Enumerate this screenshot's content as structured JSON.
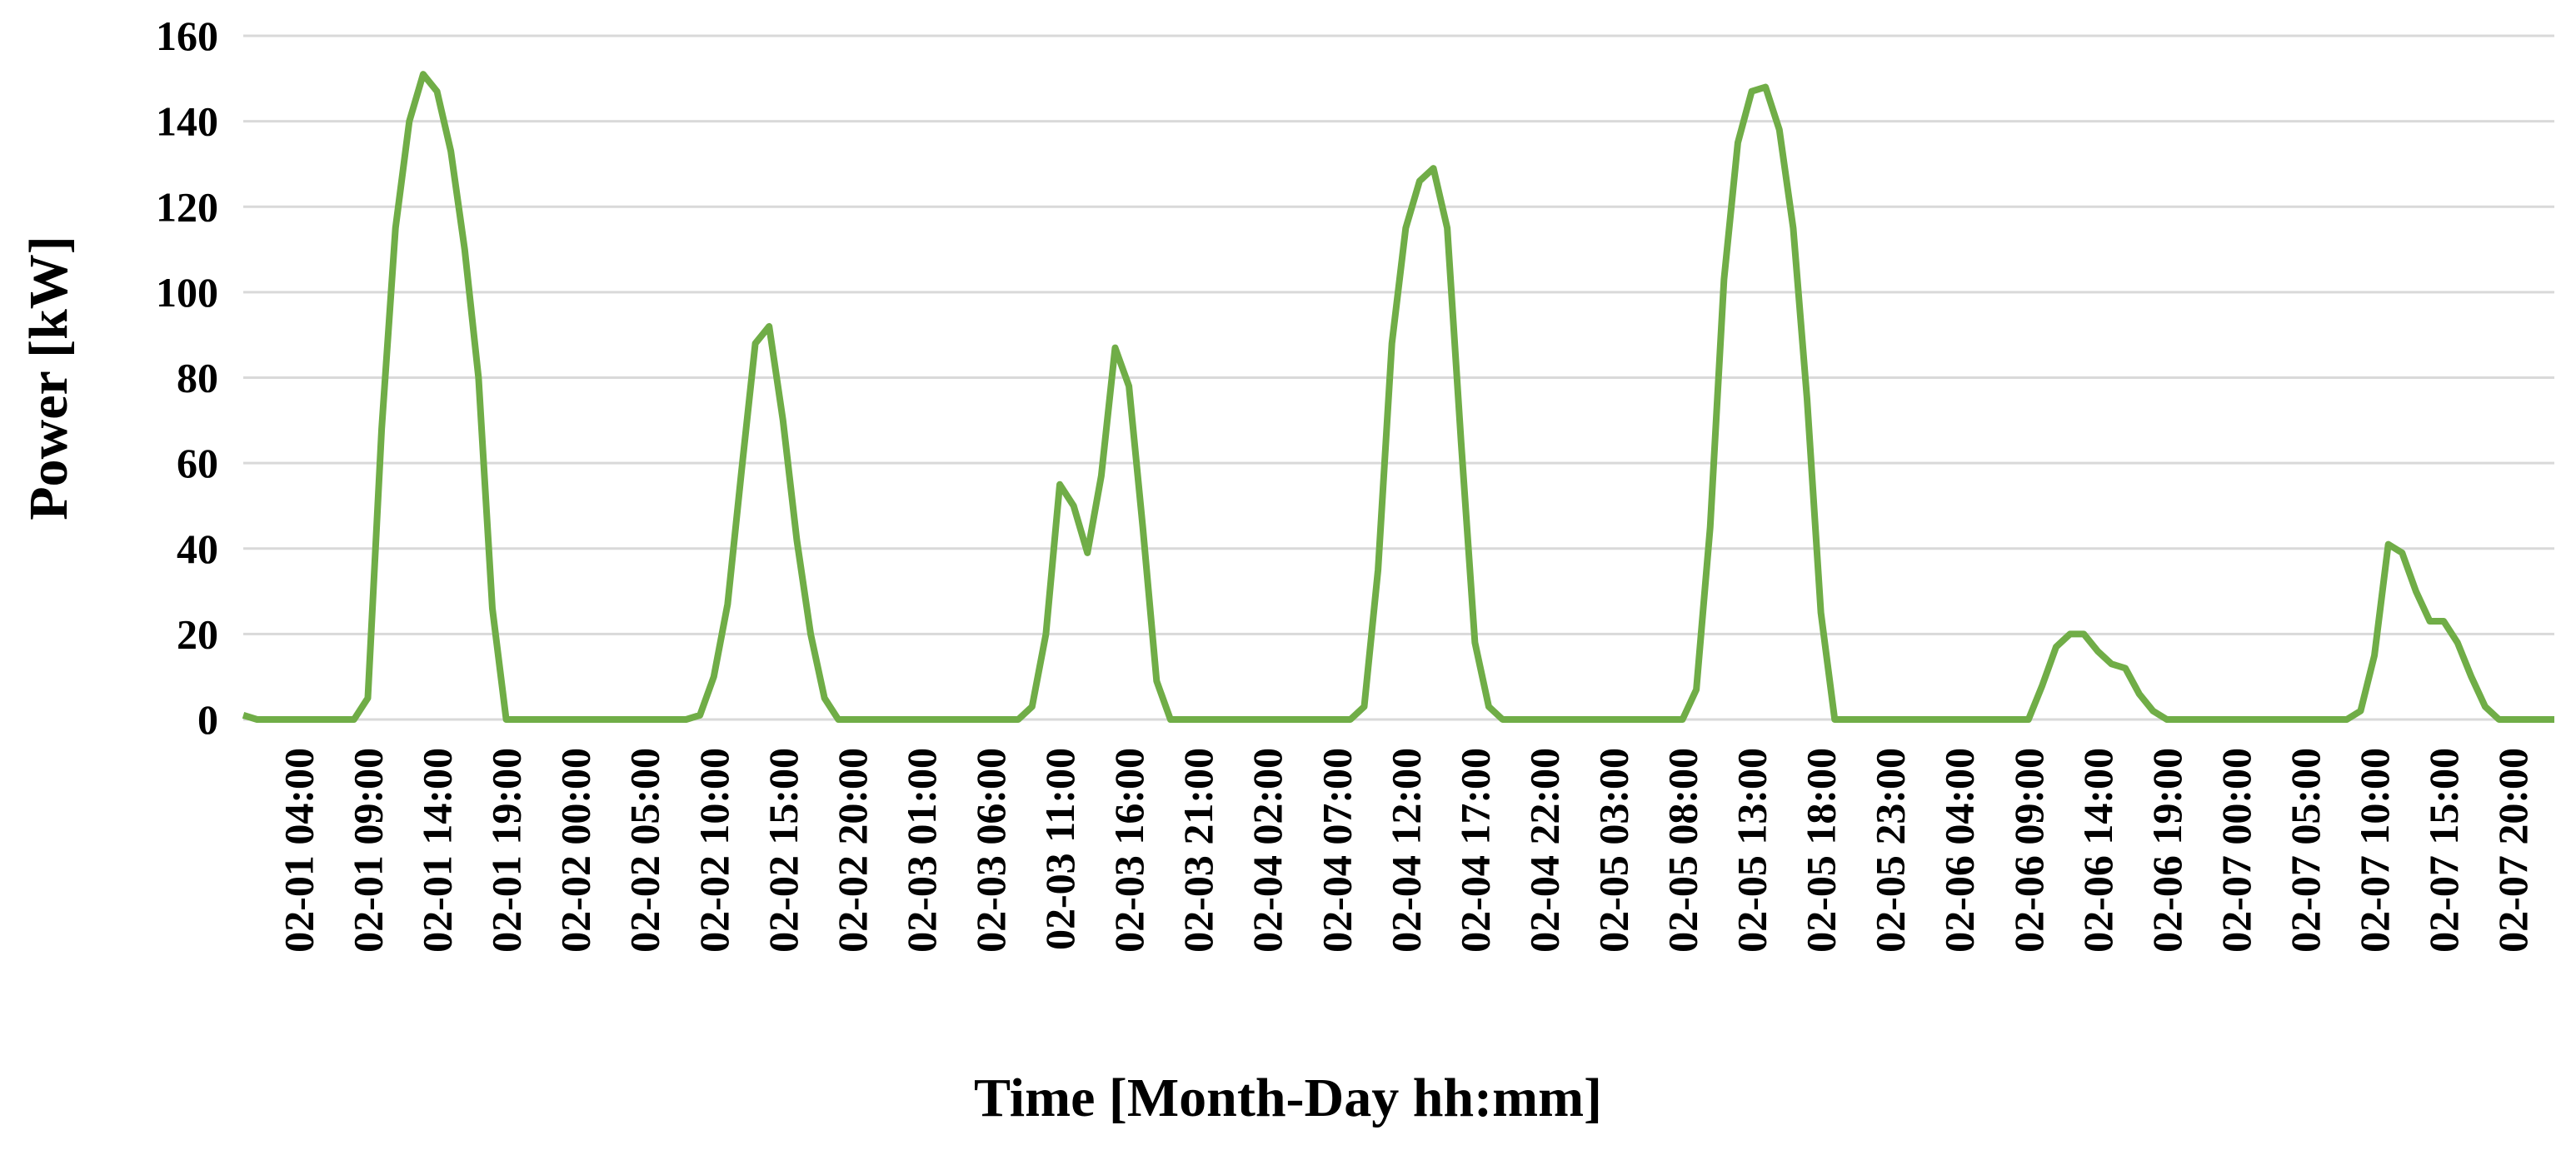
{
  "chart_data": {
    "type": "line",
    "x_label": "Time [Month-Day hh:mm]",
    "y_label": "Power [kW]",
    "categories": [
      null,
      null,
      null,
      null,
      "02-01 04:00",
      null,
      null,
      null,
      null,
      "02-01 09:00",
      null,
      null,
      null,
      null,
      "02-01 14:00",
      null,
      null,
      null,
      null,
      "02-01 19:00",
      null,
      null,
      null,
      null,
      "02-02 00:00",
      null,
      null,
      null,
      null,
      "02-02 05:00",
      null,
      null,
      null,
      null,
      "02-02 10:00",
      null,
      null,
      null,
      null,
      "02-02 15:00",
      null,
      null,
      null,
      null,
      "02-02 20:00",
      null,
      null,
      null,
      null,
      "02-03 01:00",
      null,
      null,
      null,
      null,
      "02-03 06:00",
      null,
      null,
      null,
      null,
      "02-03 11:00",
      null,
      null,
      null,
      null,
      "02-03 16:00",
      null,
      null,
      null,
      null,
      "02-03 21:00",
      null,
      null,
      null,
      null,
      "02-04 02:00",
      null,
      null,
      null,
      null,
      "02-04 07:00",
      null,
      null,
      null,
      null,
      "02-04 12:00",
      null,
      null,
      null,
      null,
      "02-04 17:00",
      null,
      null,
      null,
      null,
      "02-04 22:00",
      null,
      null,
      null,
      null,
      "02-05 03:00",
      null,
      null,
      null,
      null,
      "02-05 08:00",
      null,
      null,
      null,
      null,
      "02-05 13:00",
      null,
      null,
      null,
      null,
      "02-05 18:00",
      null,
      null,
      null,
      null,
      "02-05 23:00",
      null,
      null,
      null,
      null,
      "02-06 04:00",
      null,
      null,
      null,
      null,
      "02-06 09:00",
      null,
      null,
      null,
      null,
      "02-06 14:00",
      null,
      null,
      null,
      null,
      "02-06 19:00",
      null,
      null,
      null,
      null,
      "02-07 00:00",
      null,
      null,
      null,
      null,
      "02-07 05:00",
      null,
      null,
      null,
      null,
      "02-07 10:00",
      null,
      null,
      null,
      null,
      "02-07 15:00",
      null,
      null,
      null,
      null,
      "02-07 20:00",
      null,
      null,
      null
    ],
    "series": [
      {
        "color": "#70ad47",
        "values": [
          1,
          0,
          0,
          0,
          0,
          0,
          0,
          0,
          0,
          5,
          68,
          115,
          140,
          151,
          147,
          133,
          110,
          80,
          26,
          0,
          0,
          0,
          0,
          0,
          0,
          0,
          0,
          0,
          0,
          0,
          0,
          0,
          0,
          1,
          10,
          27,
          58,
          88,
          92,
          70,
          42,
          20,
          5,
          0,
          0,
          0,
          0,
          0,
          0,
          0,
          0,
          0,
          0,
          0,
          0,
          0,
          0,
          3,
          20,
          55,
          50,
          39,
          57,
          87,
          78,
          45,
          9,
          0,
          0,
          0,
          0,
          0,
          0,
          0,
          0,
          0,
          0,
          0,
          0,
          0,
          0,
          3,
          35,
          88,
          115,
          126,
          129,
          115,
          65,
          18,
          3,
          0,
          0,
          0,
          0,
          0,
          0,
          0,
          0,
          0,
          0,
          0,
          0,
          0,
          0,
          7,
          45,
          103,
          135,
          147,
          148,
          138,
          115,
          75,
          25,
          0,
          0,
          0,
          0,
          0,
          0,
          0,
          0,
          0,
          0,
          0,
          0,
          0,
          0,
          0,
          8,
          17,
          20,
          20,
          16,
          13,
          12,
          6,
          2,
          0,
          0,
          0,
          0,
          0,
          0,
          0,
          0,
          0,
          0,
          0,
          0,
          0,
          0,
          2,
          15,
          41,
          39,
          30,
          23,
          23,
          18,
          10,
          3,
          0,
          0,
          0,
          0,
          0
        ]
      }
    ],
    "ylim": [
      0,
      160
    ],
    "yticks": [
      0,
      20,
      40,
      60,
      80,
      100,
      120,
      140,
      160
    ],
    "grid": true
  }
}
